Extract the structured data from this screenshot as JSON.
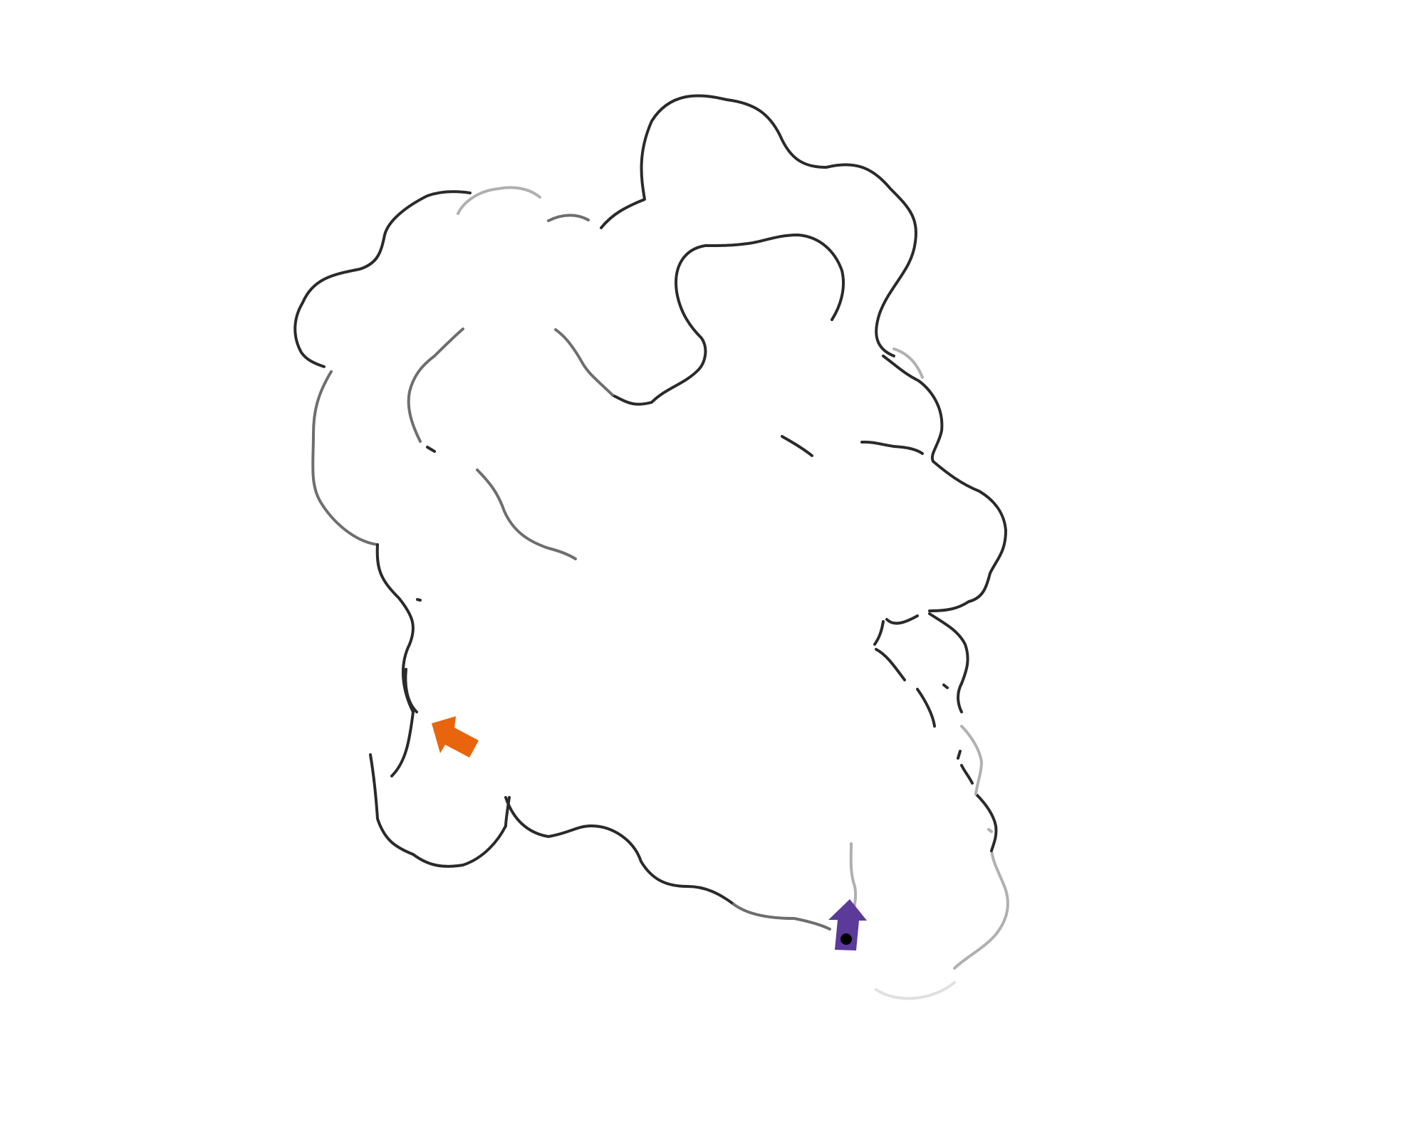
{
  "colors": {
    "background": "#ffffff",
    "wall_dark": "#2a2a2a",
    "wall_mid": "#6e6e6e",
    "wall_light": "#b0b0b0",
    "goal_arrow": "#e8650d",
    "player_arrow": "#5b3a9a",
    "player_dot": "#000000"
  },
  "icons": {
    "goal": "orange-arrow-icon",
    "player": "purple-arrow-player-icon"
  },
  "player": {
    "heading": "up"
  },
  "goal": {
    "heading": "up-left"
  }
}
